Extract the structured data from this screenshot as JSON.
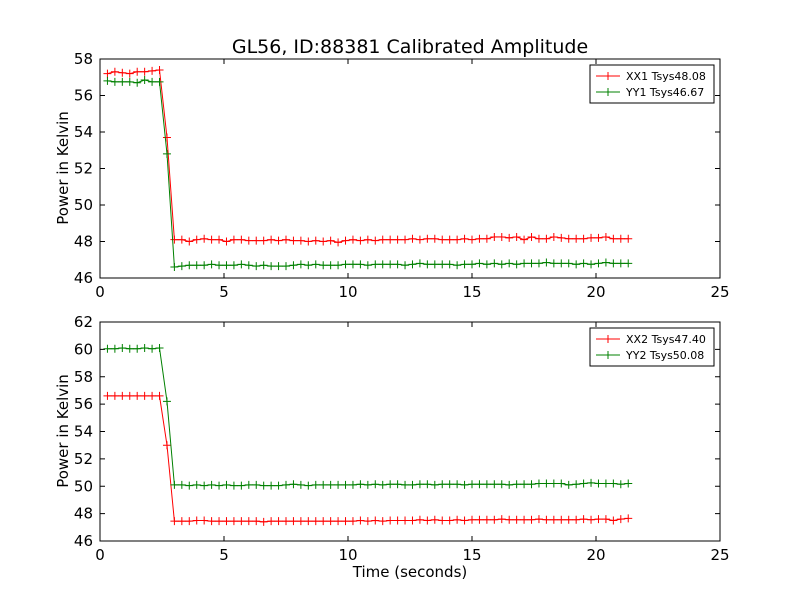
{
  "chart_data": [
    {
      "type": "line",
      "title": "GL56, ID:88381 Calibrated Amplitude",
      "xlabel": "",
      "ylabel": "Power in Kelvin",
      "xlim": [
        0,
        25
      ],
      "ylim": [
        46,
        58
      ],
      "xticks": [
        0,
        5,
        10,
        15,
        20,
        25
      ],
      "yticks": [
        46,
        48,
        50,
        52,
        54,
        56,
        58
      ],
      "grid": false,
      "legend": "top-right",
      "x": [
        0.3,
        0.6,
        0.9,
        1.2,
        1.5,
        1.8,
        2.1,
        2.4,
        2.7,
        3.0,
        3.3,
        3.6,
        3.9,
        4.2,
        4.5,
        4.8,
        5.1,
        5.4,
        5.7,
        6.0,
        6.3,
        6.6,
        6.9,
        7.2,
        7.5,
        7.8,
        8.1,
        8.4,
        8.7,
        9.0,
        9.3,
        9.6,
        9.9,
        10.2,
        10.5,
        10.8,
        11.1,
        11.4,
        11.7,
        12.0,
        12.3,
        12.6,
        12.9,
        13.2,
        13.5,
        13.8,
        14.1,
        14.4,
        14.7,
        15.0,
        15.3,
        15.6,
        15.9,
        16.2,
        16.5,
        16.8,
        17.1,
        17.4,
        17.7,
        18.0,
        18.3,
        18.6,
        18.9,
        19.2,
        19.5,
        19.8,
        20.1,
        20.4,
        20.7,
        21.0,
        21.3
      ],
      "series": [
        {
          "name": "XX1 Tsys48.08",
          "color": "#ff0000",
          "values": [
            57.2,
            57.3,
            57.25,
            57.2,
            57.3,
            57.3,
            57.35,
            57.4,
            53.7,
            48.1,
            48.1,
            48.0,
            48.1,
            48.15,
            48.1,
            48.1,
            48.0,
            48.1,
            48.1,
            48.05,
            48.05,
            48.05,
            48.1,
            48.05,
            48.1,
            48.05,
            48.05,
            48.0,
            48.05,
            48.0,
            48.05,
            47.95,
            48.05,
            48.1,
            48.05,
            48.1,
            48.05,
            48.1,
            48.1,
            48.1,
            48.1,
            48.15,
            48.1,
            48.15,
            48.15,
            48.1,
            48.1,
            48.1,
            48.15,
            48.1,
            48.15,
            48.15,
            48.25,
            48.25,
            48.2,
            48.25,
            48.1,
            48.25,
            48.15,
            48.15,
            48.25,
            48.2,
            48.15,
            48.15,
            48.15,
            48.2,
            48.2,
            48.25,
            48.15,
            48.15,
            48.15
          ]
        },
        {
          "name": "YY1 Tsys46.67",
          "color": "#008000",
          "values": [
            56.8,
            56.75,
            56.75,
            56.75,
            56.7,
            56.85,
            56.75,
            56.75,
            52.8,
            46.6,
            46.65,
            46.7,
            46.7,
            46.7,
            46.75,
            46.7,
            46.7,
            46.7,
            46.75,
            46.7,
            46.65,
            46.7,
            46.65,
            46.65,
            46.65,
            46.7,
            46.75,
            46.7,
            46.75,
            46.7,
            46.7,
            46.7,
            46.75,
            46.75,
            46.75,
            46.7,
            46.75,
            46.75,
            46.75,
            46.75,
            46.7,
            46.75,
            46.8,
            46.75,
            46.75,
            46.75,
            46.75,
            46.7,
            46.75,
            46.75,
            46.8,
            46.75,
            46.8,
            46.75,
            46.8,
            46.75,
            46.8,
            46.8,
            46.8,
            46.85,
            46.8,
            46.8,
            46.8,
            46.75,
            46.8,
            46.75,
            46.8,
            46.85,
            46.8,
            46.8,
            46.8
          ]
        }
      ]
    },
    {
      "type": "line",
      "title": "",
      "xlabel": "Time (seconds)",
      "ylabel": "Power in Kelvin",
      "xlim": [
        0,
        25
      ],
      "ylim": [
        46,
        62
      ],
      "xticks": [
        0,
        5,
        10,
        15,
        20,
        25
      ],
      "yticks": [
        46,
        48,
        50,
        52,
        54,
        56,
        58,
        60,
        62
      ],
      "grid": false,
      "legend": "top-right",
      "x": [
        0.3,
        0.6,
        0.9,
        1.2,
        1.5,
        1.8,
        2.1,
        2.4,
        2.7,
        3.0,
        3.3,
        3.6,
        3.9,
        4.2,
        4.5,
        4.8,
        5.1,
        5.4,
        5.7,
        6.0,
        6.3,
        6.6,
        6.9,
        7.2,
        7.5,
        7.8,
        8.1,
        8.4,
        8.7,
        9.0,
        9.3,
        9.6,
        9.9,
        10.2,
        10.5,
        10.8,
        11.1,
        11.4,
        11.7,
        12.0,
        12.3,
        12.6,
        12.9,
        13.2,
        13.5,
        13.8,
        14.1,
        14.4,
        14.7,
        15.0,
        15.3,
        15.6,
        15.9,
        16.2,
        16.5,
        16.8,
        17.1,
        17.4,
        17.7,
        18.0,
        18.3,
        18.6,
        18.9,
        19.2,
        19.5,
        19.8,
        20.1,
        20.4,
        20.7,
        21.0,
        21.3
      ],
      "series": [
        {
          "name": "XX2 Tsys47.40",
          "color": "#ff0000",
          "values": [
            56.6,
            56.6,
            56.6,
            56.6,
            56.6,
            56.6,
            56.6,
            56.6,
            53.0,
            47.45,
            47.45,
            47.45,
            47.5,
            47.5,
            47.45,
            47.45,
            47.45,
            47.45,
            47.45,
            47.45,
            47.45,
            47.4,
            47.45,
            47.45,
            47.45,
            47.45,
            47.45,
            47.45,
            47.45,
            47.45,
            47.45,
            47.45,
            47.45,
            47.45,
            47.5,
            47.45,
            47.5,
            47.45,
            47.5,
            47.5,
            47.5,
            47.5,
            47.55,
            47.5,
            47.55,
            47.5,
            47.5,
            47.55,
            47.5,
            47.55,
            47.55,
            47.55,
            47.55,
            47.6,
            47.55,
            47.55,
            47.55,
            47.55,
            47.6,
            47.55,
            47.55,
            47.55,
            47.55,
            47.55,
            47.6,
            47.55,
            47.6,
            47.6,
            47.5,
            47.6,
            47.65
          ]
        },
        {
          "name": "YY2 Tsys50.08",
          "color": "#008000",
          "values": [
            60.05,
            60.05,
            60.1,
            60.05,
            60.05,
            60.1,
            60.05,
            60.1,
            56.2,
            50.1,
            50.1,
            50.05,
            50.1,
            50.05,
            50.1,
            50.05,
            50.1,
            50.05,
            50.05,
            50.1,
            50.1,
            50.05,
            50.05,
            50.05,
            50.1,
            50.15,
            50.1,
            50.05,
            50.1,
            50.1,
            50.1,
            50.1,
            50.1,
            50.1,
            50.15,
            50.1,
            50.15,
            50.1,
            50.15,
            50.15,
            50.1,
            50.1,
            50.15,
            50.15,
            50.1,
            50.15,
            50.15,
            50.15,
            50.1,
            50.15,
            50.15,
            50.15,
            50.15,
            50.15,
            50.1,
            50.15,
            50.15,
            50.15,
            50.2,
            50.2,
            50.2,
            50.2,
            50.1,
            50.15,
            50.2,
            50.25,
            50.2,
            50.2,
            50.2,
            50.15,
            50.2
          ]
        }
      ]
    }
  ]
}
